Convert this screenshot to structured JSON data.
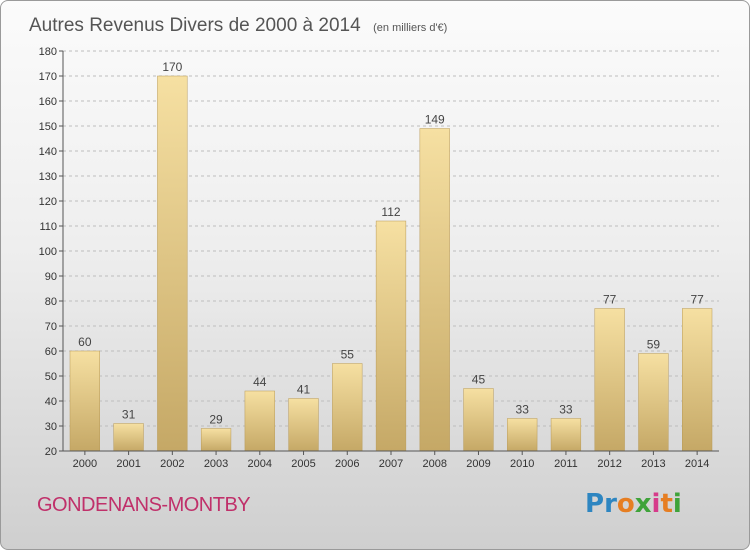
{
  "title": "Autres Revenus Divers de 2000 à 2014",
  "unit": "(en milliers d'€)",
  "commune": "GONDENANS-MONTBY",
  "logo": "Proxiti",
  "colors": {
    "bar_light": "#f4dc9c",
    "bar_dark": "#c9ad6a",
    "commune": "#c0306a"
  },
  "chart_data": {
    "type": "bar",
    "categories": [
      "2000",
      "2001",
      "2002",
      "2003",
      "2004",
      "2005",
      "2006",
      "2007",
      "2008",
      "2009",
      "2010",
      "2011",
      "2012",
      "2013",
      "2014"
    ],
    "values": [
      60,
      31,
      170,
      29,
      44,
      41,
      55,
      112,
      149,
      45,
      33,
      33,
      77,
      59,
      77
    ],
    "ylim": [
      20,
      180
    ],
    "yticks": [
      20,
      30,
      40,
      50,
      60,
      70,
      80,
      90,
      100,
      110,
      120,
      130,
      140,
      150,
      160,
      170,
      180
    ],
    "grid": "horizontal dashed",
    "legend": "none"
  }
}
